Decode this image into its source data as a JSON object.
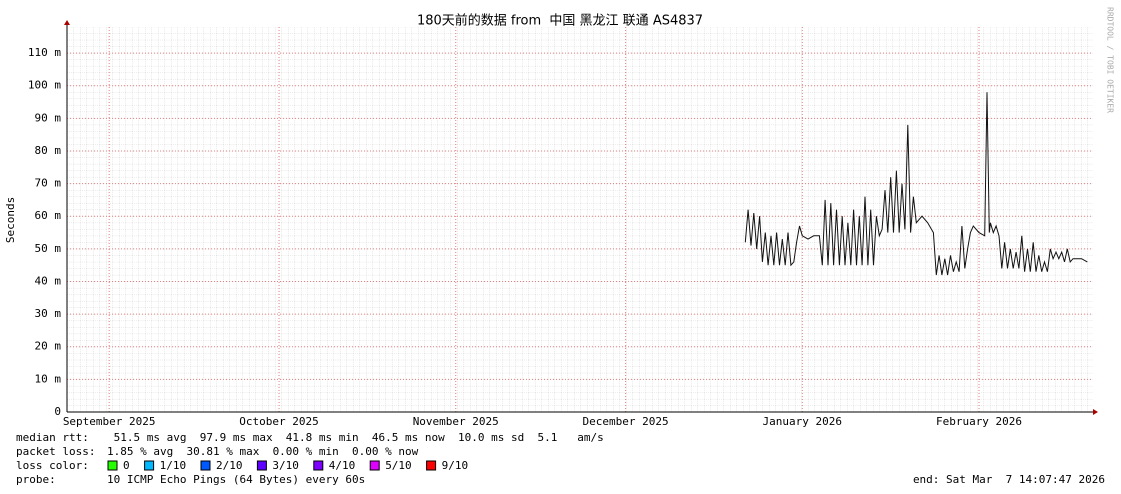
{
  "chart_data": {
    "type": "line",
    "title": "180天前的数据 from  中国 黑龙江 联通 AS4837",
    "ylabel": "Seconds",
    "side_text": "RRDTOOL / TOBI OETIKER",
    "xlim": [
      0,
      180
    ],
    "ylim": [
      0,
      118
    ],
    "xticks": [
      {
        "value": 7.4,
        "label": "September 2025"
      },
      {
        "value": 37.2,
        "label": "October 2025"
      },
      {
        "value": 68.2,
        "label": "November 2025"
      },
      {
        "value": 98,
        "label": "December 2025"
      },
      {
        "value": 129,
        "label": "January 2026"
      },
      {
        "value": 160,
        "label": "February 2026"
      }
    ],
    "yticks": [
      0,
      {
        "value": 10,
        "label": "10 m"
      },
      {
        "value": 20,
        "label": "20 m"
      },
      {
        "value": 30,
        "label": "30 m"
      },
      {
        "value": 40,
        "label": "40 m"
      },
      {
        "value": 50,
        "label": "50 m"
      },
      {
        "value": 60,
        "label": "60 m"
      },
      {
        "value": 70,
        "label": "70 m"
      },
      {
        "value": 80,
        "label": "80 m"
      },
      {
        "value": 90,
        "label": "90 m"
      },
      {
        "value": 100,
        "label": "100 m"
      },
      {
        "value": 110,
        "label": "110 m"
      }
    ],
    "grid": true,
    "x": [
      119,
      119.5,
      120,
      120.5,
      121,
      121.5,
      122,
      122.5,
      123,
      123.5,
      124,
      124.5,
      125,
      125.5,
      126,
      126.5,
      127,
      127.5,
      128,
      128.5,
      129,
      130,
      131,
      132,
      132.5,
      133,
      133.5,
      134,
      134.5,
      135,
      135.5,
      136,
      136.5,
      137,
      137.5,
      138,
      138.5,
      139,
      139.5,
      140,
      140.5,
      141,
      141.5,
      142,
      142.5,
      143,
      143.5,
      144,
      144.5,
      145,
      145.5,
      146,
      146.5,
      147,
      147.5,
      148,
      148.5,
      149,
      150,
      151,
      152,
      152.5,
      153,
      153.5,
      154,
      154.5,
      155,
      155.5,
      156,
      156.5,
      157,
      157.5,
      158,
      158.5,
      159,
      160,
      161,
      161.4,
      161.8,
      162,
      162.5,
      163,
      163.5,
      164,
      164.5,
      165,
      165.5,
      166,
      166.5,
      167,
      167.5,
      168,
      168.5,
      169,
      169.5,
      170,
      170.5,
      171,
      171.5,
      172,
      172.5,
      173,
      173.5,
      174,
      174.5,
      175,
      175.5,
      176,
      176.5,
      178,
      179
    ],
    "series": [
      {
        "color": "#111111",
        "values": [
          52,
          62,
          51,
          61,
          50,
          60,
          46,
          55,
          45,
          54,
          45,
          55,
          45,
          53,
          45,
          55,
          45,
          46,
          52,
          57,
          54,
          53,
          54,
          54,
          45,
          65,
          45,
          64,
          45,
          62,
          45,
          60,
          45,
          58,
          45,
          62,
          45,
          60,
          45,
          66,
          45,
          62,
          45,
          60,
          54,
          56,
          68,
          55,
          72,
          55,
          74,
          55,
          70,
          56,
          88,
          55,
          66,
          58,
          60,
          58,
          55,
          42,
          48,
          42,
          47,
          42,
          48,
          43,
          46,
          43,
          57,
          44,
          50,
          55,
          57,
          55,
          54,
          98,
          55,
          58,
          55,
          57,
          54,
          44,
          52,
          44,
          50,
          44,
          49,
          44,
          54,
          43,
          50,
          43,
          52,
          43,
          48,
          43,
          46,
          43,
          50,
          47,
          49,
          47,
          49,
          46,
          50,
          46,
          47,
          47,
          46
        ]
      }
    ],
    "stats": [
      {
        "label": "median rtt:",
        "text": " 51.5 ms avg  97.9 ms max  41.8 ms min  46.5 ms now  10.0 ms sd  5.1   am/s"
      },
      {
        "label": "packet loss:",
        "text": "1.85 % avg  30.81 % max  0.00 % min  0.00 % now"
      }
    ],
    "loss_label": "loss color:",
    "loss_colors": [
      {
        "label": "0",
        "color": "#26ff00"
      },
      {
        "label": "1/10",
        "color": "#00b8ff"
      },
      {
        "label": "2/10",
        "color": "#0059ff"
      },
      {
        "label": "3/10",
        "color": "#5e00ff"
      },
      {
        "label": "4/10",
        "color": "#7e00ff"
      },
      {
        "label": "5/10",
        "color": "#dd00ff"
      },
      {
        "label": "9/10",
        "color": "#ff0000"
      }
    ],
    "probe_label": "probe:",
    "probe": "10 ICMP Echo Pings (64 Bytes) every 60s",
    "end": "end: Sat Mar  7 14:07:47 2026"
  }
}
